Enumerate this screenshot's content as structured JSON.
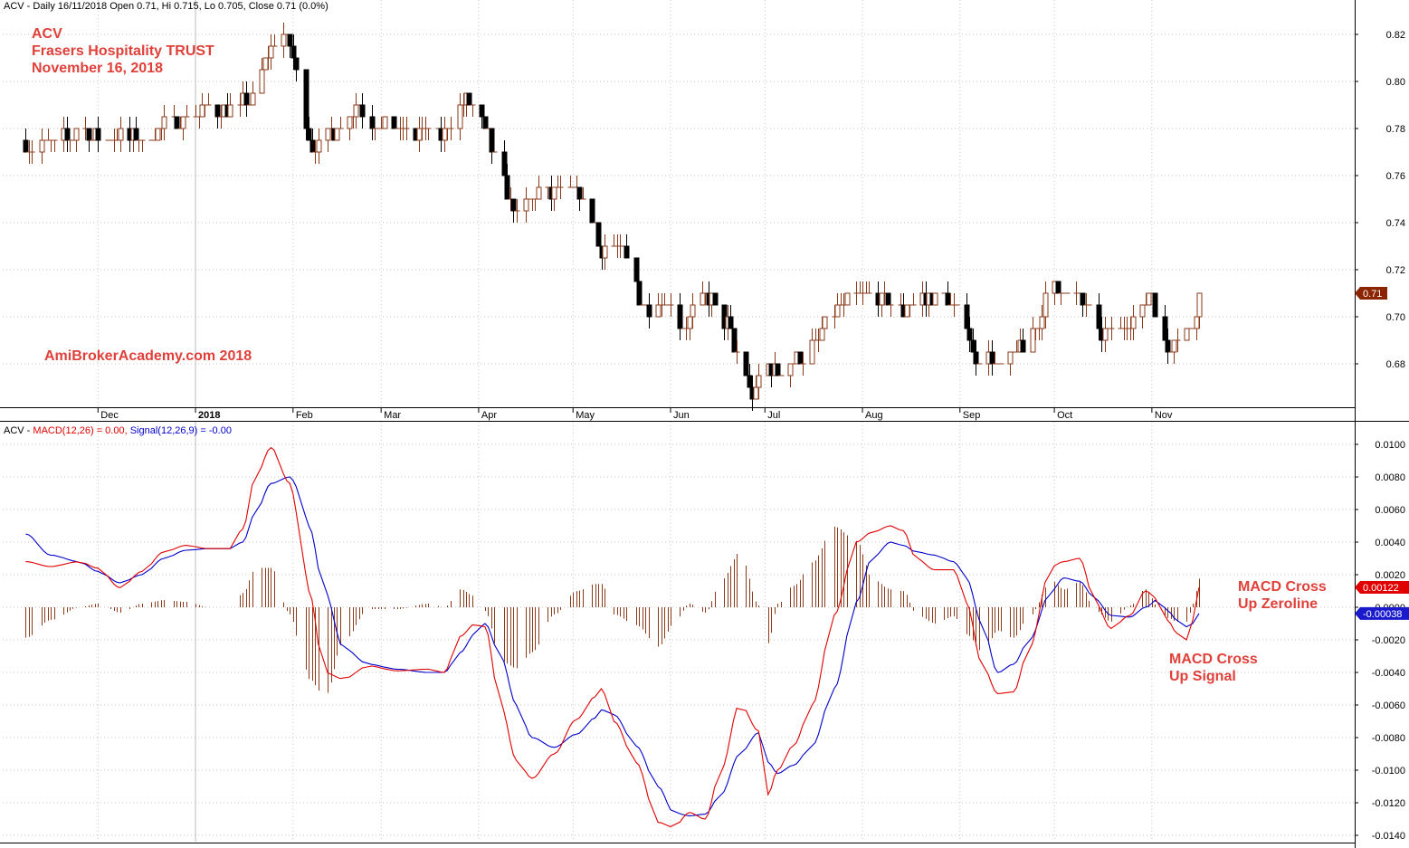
{
  "header": {
    "price_title": "ACV - Daily 16/11/2018 Open 0.71, Hi 0.715, Lo 0.705, Close 0.71 (0.0%)",
    "macd_prefix": "ACV - ",
    "macd_label": "MACD(12,26) = 0.00,",
    "signal_label": "Signal(12,26,9) = -0.00"
  },
  "annotations": {
    "title_lines": [
      "ACV",
      "Frasers Hospitality TRUST",
      "November 16, 2018"
    ],
    "watermark": "AmiBrokerAcademy.com  2018",
    "cross_zero": [
      "MACD Cross",
      "Up Zeroline"
    ],
    "cross_signal": [
      "MACD Cross",
      "Up Signal"
    ]
  },
  "colors": {
    "up_bar": "#8b3a1a",
    "down_bar": "#000000",
    "macd_line": "#e00000",
    "signal_line": "#0000cc",
    "histogram": "#8b3a1a",
    "grid": "#b0b0b0",
    "price_tag_bg": "#8b2500",
    "macd_tag_bg": "#e00000",
    "signal_tag_bg": "#1a1acc",
    "annotation": "#e0403a"
  },
  "chart_data": [
    {
      "type": "ohlc",
      "title": "ACV - Daily 16/11/2018",
      "x_tick_labels": [
        "Dec",
        "2018",
        "Feb",
        "Mar",
        "Apr",
        "May",
        "Jun",
        "Jul",
        "Aug",
        "Sep",
        "Oct",
        "Nov"
      ],
      "x_tick_dates": [
        "2017-12-01",
        "2018-01-01",
        "2018-02-01",
        "2018-03-01",
        "2018-04-01",
        "2018-05-01",
        "2018-06-01",
        "2018-07-01",
        "2018-08-01",
        "2018-09-01",
        "2018-10-01",
        "2018-11-01"
      ],
      "y_tick_labels": [
        "0.68",
        "0.70",
        "0.72",
        "0.74",
        "0.76",
        "0.78",
        "0.80",
        "0.82"
      ],
      "y_ticks": [
        0.68,
        0.7,
        0.72,
        0.74,
        0.76,
        0.78,
        0.8,
        0.82
      ],
      "ylim": [
        0.661,
        0.834
      ],
      "last_close_label": "0.71",
      "last_close": 0.71,
      "close_path": [
        [
          "2017-11-10",
          0.773
        ],
        [
          "2017-11-17",
          0.775
        ],
        [
          "2017-11-24",
          0.778
        ],
        [
          "2017-12-01",
          0.777
        ],
        [
          "2017-12-08",
          0.776
        ],
        [
          "2017-12-15",
          0.775
        ],
        [
          "2017-12-22",
          0.782
        ],
        [
          "2017-12-29",
          0.786
        ],
        [
          "2018-01-05",
          0.788
        ],
        [
          "2018-01-12",
          0.788
        ],
        [
          "2018-01-19",
          0.793
        ],
        [
          "2018-01-24",
          0.812
        ],
        [
          "2018-01-27",
          0.82
        ],
        [
          "2018-01-31",
          0.816
        ],
        [
          "2018-02-03",
          0.797
        ],
        [
          "2018-02-07",
          0.773
        ],
        [
          "2018-02-14",
          0.78
        ],
        [
          "2018-02-21",
          0.789
        ],
        [
          "2018-02-28",
          0.781
        ],
        [
          "2018-03-10",
          0.778
        ],
        [
          "2018-03-20",
          0.778
        ],
        [
          "2018-03-27",
          0.792
        ],
        [
          "2018-04-03",
          0.78
        ],
        [
          "2018-04-08",
          0.76
        ],
        [
          "2018-04-13",
          0.744
        ],
        [
          "2018-04-20",
          0.752
        ],
        [
          "2018-04-27",
          0.753
        ],
        [
          "2018-05-02",
          0.752
        ],
        [
          "2018-05-06",
          0.746
        ],
        [
          "2018-05-10",
          0.729
        ],
        [
          "2018-05-17",
          0.727
        ],
        [
          "2018-05-24",
          0.705
        ],
        [
          "2018-05-31",
          0.706
        ],
        [
          "2018-06-05",
          0.694
        ],
        [
          "2018-06-10",
          0.71
        ],
        [
          "2018-06-14",
          0.706
        ],
        [
          "2018-06-18",
          0.699
        ],
        [
          "2018-06-22",
          0.683
        ],
        [
          "2018-06-27",
          0.668
        ],
        [
          "2018-07-02",
          0.68
        ],
        [
          "2018-07-06",
          0.677
        ],
        [
          "2018-07-11",
          0.681
        ],
        [
          "2018-07-16",
          0.688
        ],
        [
          "2018-07-23",
          0.702
        ],
        [
          "2018-07-30",
          0.709
        ],
        [
          "2018-08-06",
          0.706
        ],
        [
          "2018-08-13",
          0.703
        ],
        [
          "2018-08-20",
          0.707
        ],
        [
          "2018-08-27",
          0.708
        ],
        [
          "2018-09-01",
          0.704
        ],
        [
          "2018-09-06",
          0.684
        ],
        [
          "2018-09-10",
          0.681
        ],
        [
          "2018-09-14",
          0.678
        ],
        [
          "2018-09-20",
          0.686
        ],
        [
          "2018-09-25",
          0.696
        ],
        [
          "2018-09-30",
          0.712
        ],
        [
          "2018-10-05",
          0.71
        ],
        [
          "2018-10-10",
          0.705
        ],
        [
          "2018-10-15",
          0.694
        ],
        [
          "2018-10-22",
          0.694
        ],
        [
          "2018-10-27",
          0.701
        ],
        [
          "2018-11-01",
          0.709
        ],
        [
          "2018-11-04",
          0.685
        ],
        [
          "2018-11-09",
          0.692
        ],
        [
          "2018-11-14",
          0.696
        ],
        [
          "2018-11-16",
          0.71
        ]
      ]
    },
    {
      "type": "macd",
      "title": "ACV - MACD(12,26) = 0.00, Signal(12,26,9) = -0.00",
      "series": [
        {
          "name": "MACD(12,26)",
          "values": [
            [
              "2017-11-08",
              0.0028
            ],
            [
              "2017-11-16",
              0.0025
            ],
            [
              "2017-11-25",
              0.0028
            ],
            [
              "2017-12-01",
              0.0024
            ],
            [
              "2017-12-08",
              0.0012
            ],
            [
              "2017-12-15",
              0.0022
            ],
            [
              "2017-12-22",
              0.0034
            ],
            [
              "2017-12-29",
              0.0038
            ],
            [
              "2018-01-05",
              0.0036
            ],
            [
              "2018-01-12",
              0.0036
            ],
            [
              "2018-01-16",
              0.0048
            ],
            [
              "2018-01-20",
              0.008
            ],
            [
              "2018-01-25",
              0.0098
            ],
            [
              "2018-01-31",
              0.0076
            ],
            [
              "2018-02-03",
              0.0052
            ],
            [
              "2018-02-06",
              0.001
            ],
            [
              "2018-02-11",
              -0.004
            ],
            [
              "2018-02-17",
              -0.0044
            ],
            [
              "2018-02-25",
              -0.0036
            ],
            [
              "2018-03-06",
              -0.0039
            ],
            [
              "2018-03-16",
              -0.0038
            ],
            [
              "2018-03-21",
              -0.004
            ],
            [
              "2018-03-26",
              -0.0018
            ],
            [
              "2018-03-31",
              -0.001
            ],
            [
              "2018-04-03",
              -0.0012
            ],
            [
              "2018-04-08",
              -0.006
            ],
            [
              "2018-04-13",
              -0.0094
            ],
            [
              "2018-04-18",
              -0.0105
            ],
            [
              "2018-04-25",
              -0.009
            ],
            [
              "2018-05-02",
              -0.0069
            ],
            [
              "2018-05-08",
              -0.0055
            ],
            [
              "2018-05-10",
              -0.005
            ],
            [
              "2018-05-14",
              -0.007
            ],
            [
              "2018-05-21",
              -0.0095
            ],
            [
              "2018-05-28",
              -0.0132
            ],
            [
              "2018-06-02",
              -0.0135
            ],
            [
              "2018-06-07",
              -0.0126
            ],
            [
              "2018-06-12",
              -0.013
            ],
            [
              "2018-06-17",
              -0.01
            ],
            [
              "2018-06-23",
              -0.0059
            ],
            [
              "2018-06-29",
              -0.0076
            ],
            [
              "2018-07-02",
              -0.0115
            ],
            [
              "2018-07-05",
              -0.01
            ],
            [
              "2018-07-10",
              -0.0085
            ],
            [
              "2018-07-16",
              -0.006
            ],
            [
              "2018-07-23",
              -0.0005
            ],
            [
              "2018-07-30",
              0.004
            ],
            [
              "2018-08-04",
              0.0046
            ],
            [
              "2018-08-10",
              0.005
            ],
            [
              "2018-08-14",
              0.0047
            ],
            [
              "2018-08-18",
              0.003
            ],
            [
              "2018-08-24",
              0.0023
            ],
            [
              "2018-08-30",
              0.0023
            ],
            [
              "2018-09-03",
              0.0003
            ],
            [
              "2018-09-08",
              -0.0035
            ],
            [
              "2018-09-13",
              -0.0053
            ],
            [
              "2018-09-18",
              -0.0052
            ],
            [
              "2018-09-23",
              -0.0025
            ],
            [
              "2018-09-30",
              0.0025
            ],
            [
              "2018-10-04",
              0.0028
            ],
            [
              "2018-10-09",
              0.003
            ],
            [
              "2018-10-14",
              0.0003
            ],
            [
              "2018-10-19",
              -0.0013
            ],
            [
              "2018-10-25",
              -0.0005
            ],
            [
              "2018-10-30",
              0.001
            ],
            [
              "2018-11-03",
              0.0005
            ],
            [
              "2018-11-06",
              -0.0008
            ],
            [
              "2018-11-09",
              -0.0016
            ],
            [
              "2018-11-12",
              -0.002
            ],
            [
              "2018-11-14",
              -0.0008
            ],
            [
              "2018-11-16",
              0.00122
            ]
          ]
        },
        {
          "name": "Signal(12,26,9)",
          "values": [
            [
              "2017-11-08",
              0.0045
            ],
            [
              "2017-11-16",
              0.0032
            ],
            [
              "2017-11-25",
              0.0028
            ],
            [
              "2017-12-01",
              0.0022
            ],
            [
              "2017-12-08",
              0.0015
            ],
            [
              "2017-12-15",
              0.002
            ],
            [
              "2017-12-22",
              0.003
            ],
            [
              "2017-12-29",
              0.0035
            ],
            [
              "2018-01-05",
              0.0036
            ],
            [
              "2018-01-12",
              0.0036
            ],
            [
              "2018-01-16",
              0.004
            ],
            [
              "2018-01-20",
              0.0058
            ],
            [
              "2018-01-25",
              0.0076
            ],
            [
              "2018-01-31",
              0.008
            ],
            [
              "2018-02-03",
              0.0072
            ],
            [
              "2018-02-06",
              0.005
            ],
            [
              "2018-02-11",
              0.001
            ],
            [
              "2018-02-17",
              -0.0025
            ],
            [
              "2018-02-25",
              -0.0035
            ],
            [
              "2018-03-06",
              -0.0038
            ],
            [
              "2018-03-16",
              -0.004
            ],
            [
              "2018-03-21",
              -0.004
            ],
            [
              "2018-03-26",
              -0.0028
            ],
            [
              "2018-03-31",
              -0.0016
            ],
            [
              "2018-04-03",
              -0.001
            ],
            [
              "2018-04-08",
              -0.003
            ],
            [
              "2018-04-13",
              -0.006
            ],
            [
              "2018-04-18",
              -0.008
            ],
            [
              "2018-04-25",
              -0.0086
            ],
            [
              "2018-05-02",
              -0.0078
            ],
            [
              "2018-05-08",
              -0.0068
            ],
            [
              "2018-05-10",
              -0.0063
            ],
            [
              "2018-05-14",
              -0.0066
            ],
            [
              "2018-05-21",
              -0.0085
            ],
            [
              "2018-05-28",
              -0.011
            ],
            [
              "2018-06-02",
              -0.0126
            ],
            [
              "2018-06-07",
              -0.0128
            ],
            [
              "2018-06-12",
              -0.0127
            ],
            [
              "2018-06-17",
              -0.0115
            ],
            [
              "2018-06-23",
              -0.009
            ],
            [
              "2018-06-29",
              -0.0077
            ],
            [
              "2018-07-02",
              -0.0095
            ],
            [
              "2018-07-05",
              -0.0102
            ],
            [
              "2018-07-10",
              -0.0097
            ],
            [
              "2018-07-16",
              -0.0085
            ],
            [
              "2018-07-23",
              -0.005
            ],
            [
              "2018-07-30",
              0.0003
            ],
            [
              "2018-08-04",
              0.003
            ],
            [
              "2018-08-10",
              0.004
            ],
            [
              "2018-08-14",
              0.0038
            ],
            [
              "2018-08-18",
              0.0034
            ],
            [
              "2018-08-24",
              0.0032
            ],
            [
              "2018-08-30",
              0.0028
            ],
            [
              "2018-09-03",
              0.0018
            ],
            [
              "2018-09-08",
              -0.001
            ],
            [
              "2018-09-13",
              -0.004
            ],
            [
              "2018-09-18",
              -0.0035
            ],
            [
              "2018-09-23",
              -0.002
            ],
            [
              "2018-09-30",
              0.001
            ],
            [
              "2018-10-04",
              0.0018
            ],
            [
              "2018-10-09",
              0.0016
            ],
            [
              "2018-10-14",
              0.0005
            ],
            [
              "2018-10-19",
              -0.0005
            ],
            [
              "2018-10-25",
              -0.0006
            ],
            [
              "2018-10-30",
              0.0
            ],
            [
              "2018-11-03",
              0.0005
            ],
            [
              "2018-11-06",
              -0.0002
            ],
            [
              "2018-11-09",
              -0.0008
            ],
            [
              "2018-11-12",
              -0.0012
            ],
            [
              "2018-11-14",
              -0.001
            ],
            [
              "2018-11-16",
              -0.00038
            ]
          ]
        }
      ],
      "histogram": "MACD minus Signal",
      "y_tick_labels": [
        "0.0100",
        "0.0080",
        "0.0060",
        "0.0040",
        "0.0020",
        "0.0000",
        "-0.0020",
        "-0.0040",
        "-0.0060",
        "-0.0080",
        "-0.0100",
        "-0.0120",
        "-0.0140"
      ],
      "y_ticks": [
        0.01,
        0.008,
        0.006,
        0.004,
        0.002,
        0.0,
        -0.002,
        -0.004,
        -0.006,
        -0.008,
        -0.01,
        -0.012,
        -0.014
      ],
      "ylim": [
        -0.0147,
        0.011
      ],
      "last_macd_label": "0.00122",
      "last_signal_label": "-0.00038"
    }
  ]
}
